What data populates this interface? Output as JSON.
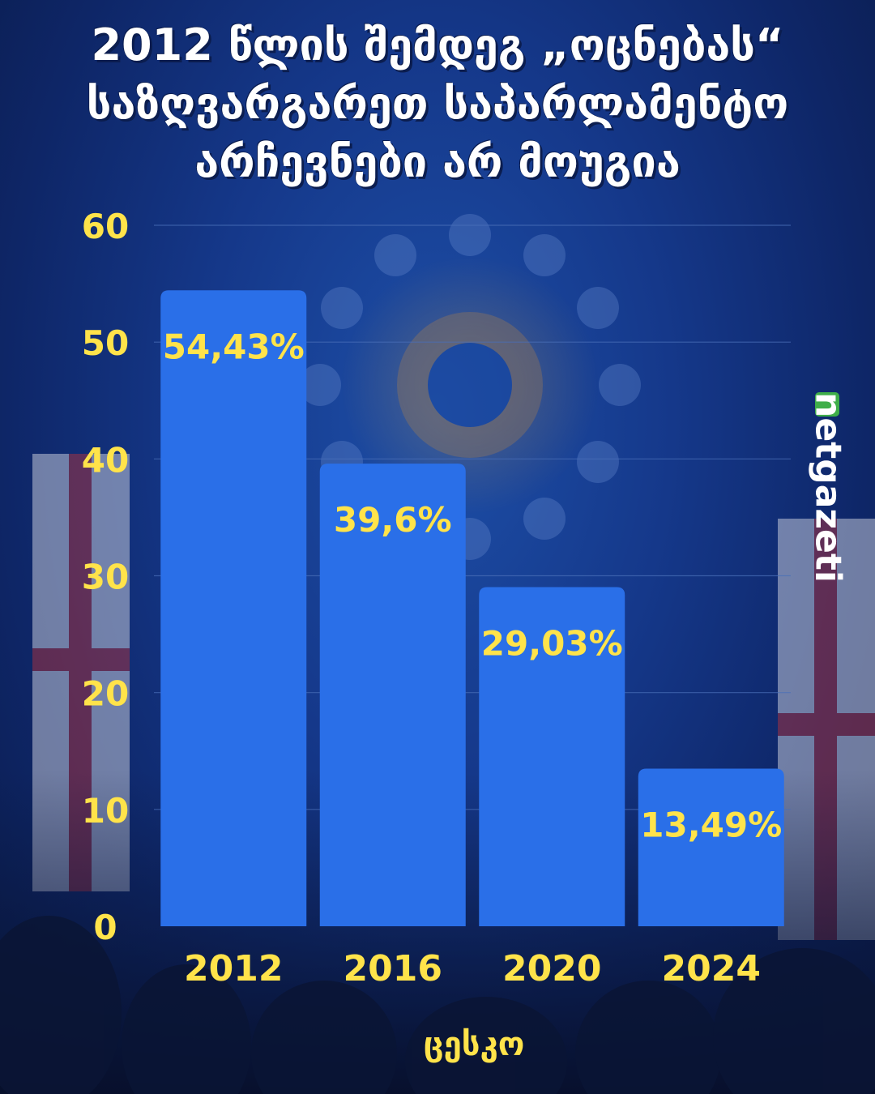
{
  "chart_data": {
    "type": "bar",
    "title_lines": [
      "2012 წლის შემდეგ „ოცნებას“",
      "საზღვარგარეთ საპარლამენტო",
      "არჩევნები  არ  მოუგია"
    ],
    "categories": [
      "2012",
      "2016",
      "2020",
      "2024"
    ],
    "values": [
      54.43,
      39.6,
      29.03,
      13.49
    ],
    "data_labels": [
      "54,43%",
      "39,6%",
      "29,03%",
      "13,49%"
    ],
    "y_ticks": [
      "0",
      "10",
      "20",
      "30",
      "40",
      "50",
      "60"
    ],
    "ylim": [
      0,
      60
    ],
    "xlabel": "ცესკო",
    "ylabel": "",
    "grid": true,
    "colors": {
      "bar": "#2a6fe8",
      "label": "#ffe34a",
      "grid": "#4a6fb8"
    }
  },
  "brand": {
    "name": "netgazeti",
    "at": "@"
  }
}
